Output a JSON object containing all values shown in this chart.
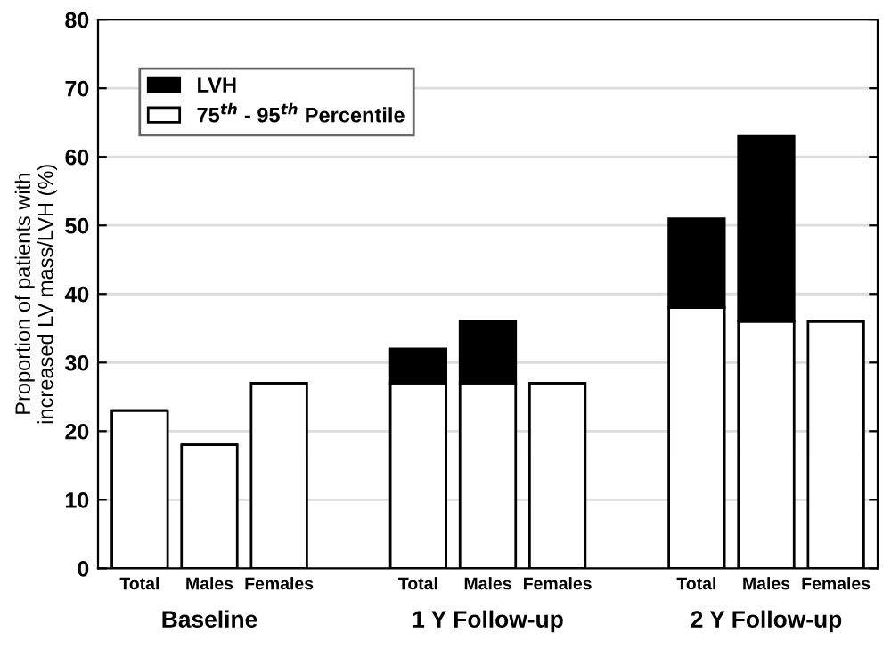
{
  "chart_data": {
    "type": "bar",
    "stacked": true,
    "ylabel": "Proportion of patients with\nincreased LV mass/LVH (%)",
    "categories": [
      "Total",
      "Males",
      "Females",
      null,
      "Total",
      "Males",
      "Females",
      null,
      "Total",
      "Males",
      "Females"
    ],
    "series": [
      {
        "name": "75$^{th}$ - 95$^{th}$ Percentile",
        "color": "#ffffff",
        "values": [
          23,
          18,
          27,
          null,
          27,
          27,
          27,
          null,
          38,
          36,
          36
        ]
      },
      {
        "name": "LVH",
        "color": "#000000",
        "values": [
          0,
          0,
          0,
          null,
          5,
          9,
          0,
          null,
          13,
          27,
          0
        ]
      }
    ],
    "annotations": [
      "Baseline",
      "1 Y Follow-up",
      "2 Y Follow-up"
    ],
    "ylim": [
      0,
      80
    ],
    "yticks": [
      0,
      10,
      20,
      30,
      40,
      50,
      60,
      70,
      80
    ],
    "grid": "y",
    "legend": "top left"
  }
}
